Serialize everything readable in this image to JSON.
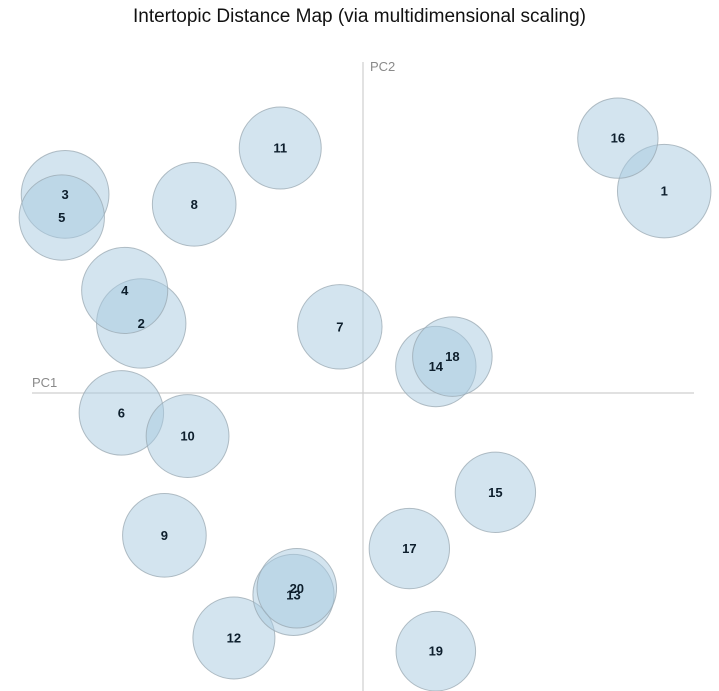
{
  "chart_data": {
    "type": "scatter",
    "title": "Intertopic Distance Map (via multidimensional scaling)",
    "xlabel": "PC1",
    "ylabel": "PC2",
    "xlim": [
      -1,
      1
    ],
    "ylim": [
      -1,
      1
    ],
    "grid": false,
    "topics": [
      {
        "label": "1",
        "x": 0.91,
        "y": 0.61,
        "size": 1.14
      },
      {
        "label": "2",
        "x": -0.67,
        "y": 0.21,
        "size": 1.09
      },
      {
        "label": "3",
        "x": -0.9,
        "y": 0.6,
        "size": 1.07
      },
      {
        "label": "4",
        "x": -0.72,
        "y": 0.31,
        "size": 1.05
      },
      {
        "label": "5",
        "x": -0.91,
        "y": 0.53,
        "size": 1.04
      },
      {
        "label": "6",
        "x": -0.73,
        "y": -0.06,
        "size": 1.03
      },
      {
        "label": "7",
        "x": -0.07,
        "y": 0.2,
        "size": 1.03
      },
      {
        "label": "8",
        "x": -0.51,
        "y": 0.57,
        "size": 1.02
      },
      {
        "label": "9",
        "x": -0.6,
        "y": -0.43,
        "size": 1.02
      },
      {
        "label": "10",
        "x": -0.53,
        "y": -0.13,
        "size": 1.01
      },
      {
        "label": "11",
        "x": -0.25,
        "y": 0.74,
        "size": 1.0
      },
      {
        "label": "12",
        "x": -0.39,
        "y": -0.74,
        "size": 1.0
      },
      {
        "label": "13",
        "x": -0.21,
        "y": -0.61,
        "size": 0.99
      },
      {
        "label": "14",
        "x": 0.22,
        "y": 0.08,
        "size": 0.98
      },
      {
        "label": "15",
        "x": 0.4,
        "y": -0.3,
        "size": 0.98
      },
      {
        "label": "16",
        "x": 0.77,
        "y": 0.77,
        "size": 0.98
      },
      {
        "label": "17",
        "x": 0.14,
        "y": -0.47,
        "size": 0.98
      },
      {
        "label": "18",
        "x": 0.27,
        "y": 0.11,
        "size": 0.97
      },
      {
        "label": "19",
        "x": 0.22,
        "y": -0.78,
        "size": 0.97
      },
      {
        "label": "20",
        "x": -0.2,
        "y": -0.59,
        "size": 0.97
      }
    ],
    "bubble_color": "#a8c9df",
    "label_color": "#0d1e2c",
    "axis_color": "#cfcfcf"
  }
}
